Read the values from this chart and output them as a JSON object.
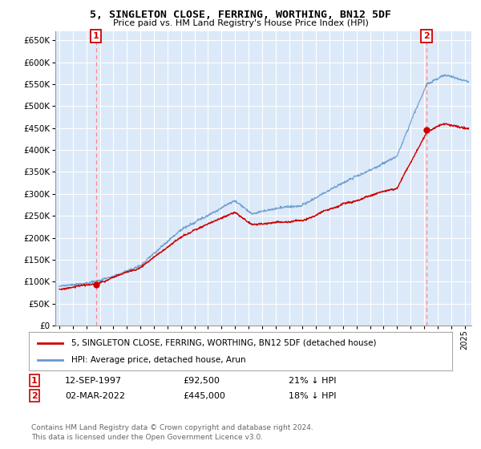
{
  "title": "5, SINGLETON CLOSE, FERRING, WORTHING, BN12 5DF",
  "subtitle": "Price paid vs. HM Land Registry's House Price Index (HPI)",
  "ylim": [
    0,
    670000
  ],
  "yticks": [
    0,
    50000,
    100000,
    150000,
    200000,
    250000,
    300000,
    350000,
    400000,
    450000,
    500000,
    550000,
    600000,
    650000
  ],
  "xlim_start": 1994.7,
  "xlim_end": 2025.5,
  "background_color": "#dce9f8",
  "plot_bg": "#dce9f8",
  "grid_color": "#ffffff",
  "sale1_date": 1997.7,
  "sale1_price": 92500,
  "sale1_label": "1",
  "sale2_date": 2022.17,
  "sale2_price": 445000,
  "sale2_label": "2",
  "line_color_property": "#cc0000",
  "line_color_hpi": "#6699cc",
  "legend_property": "5, SINGLETON CLOSE, FERRING, WORTHING, BN12 5DF (detached house)",
  "legend_hpi": "HPI: Average price, detached house, Arun",
  "annotation1_date": "12-SEP-1997",
  "annotation1_price": "£92,500",
  "annotation1_pct": "21% ↓ HPI",
  "annotation2_date": "02-MAR-2022",
  "annotation2_price": "£445,000",
  "annotation2_pct": "18% ↓ HPI",
  "footer": "Contains HM Land Registry data © Crown copyright and database right 2024.\nThis data is licensed under the Open Government Licence v3.0."
}
